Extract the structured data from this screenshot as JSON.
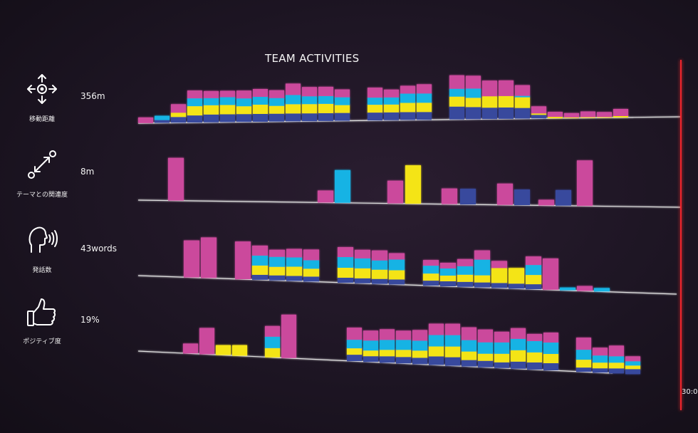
{
  "title": "TEAM ACTIVITIES",
  "colors": {
    "magenta": "#cb4a9c",
    "cyan": "#13b3e4",
    "yellow": "#f4e418",
    "navy": "#37489d",
    "timer": "#f0242c",
    "baseline": "#e0e0e0"
  },
  "metrics": [
    {
      "icon": "move-arrows-icon",
      "label": "移動距離",
      "value": "356m"
    },
    {
      "icon": "theme-relevance-icon",
      "label": "テーマとの関連度",
      "value": "8m"
    },
    {
      "icon": "speaking-head-icon",
      "label": "発話数",
      "value": "43words"
    },
    {
      "icon": "thumbs-up-icon",
      "label": "ポジティブ度",
      "value": "19%"
    }
  ],
  "timer": {
    "label": "30:0"
  },
  "chart_data": [
    {
      "type": "bar",
      "name": "移動距離",
      "series": [
        {
          "color": "navy",
          "values": [
            0,
            4,
            8,
            10,
            11,
            11,
            11,
            11,
            11,
            11,
            11,
            11,
            11,
            0,
            11,
            11,
            11,
            11,
            0,
            18,
            17,
            16,
            16,
            15,
            5,
            0,
            0,
            0,
            0,
            0
          ]
        },
        {
          "color": "yellow",
          "values": [
            0,
            0,
            6,
            13,
            13,
            13,
            11,
            13,
            11,
            13,
            13,
            13,
            11,
            0,
            11,
            11,
            13,
            13,
            0,
            14,
            13,
            16,
            16,
            15,
            2,
            2,
            1,
            1,
            1,
            2
          ]
        },
        {
          "color": "cyan",
          "values": [
            0,
            6,
            0,
            11,
            10,
            11,
            11,
            11,
            11,
            13,
            11,
            11,
            11,
            0,
            10,
            10,
            13,
            13,
            0,
            11,
            13,
            0,
            0,
            2,
            0,
            0,
            0,
            0,
            0,
            0
          ]
        },
        {
          "color": "magenta",
          "values": [
            8,
            0,
            12,
            11,
            10,
            9,
            11,
            11,
            11,
            16,
            13,
            13,
            11,
            0,
            14,
            11,
            11,
            13,
            0,
            19,
            18,
            22,
            22,
            15,
            10,
            7,
            6,
            8,
            7,
            10
          ]
        }
      ]
    },
    {
      "type": "bar",
      "name": "テーマとの関連度",
      "bars": [
        {
          "color": "magenta",
          "value": 60
        },
        {
          "color": "magenta",
          "value": 17
        },
        {
          "color": "cyan",
          "value": 46
        },
        {
          "color": "magenta",
          "value": 32
        },
        {
          "color": "yellow",
          "value": 54
        },
        {
          "color": "magenta",
          "value": 22
        },
        {
          "color": "navy",
          "value": 22
        },
        {
          "color": "magenta",
          "value": 30
        },
        {
          "color": "navy",
          "value": 22
        },
        {
          "color": "magenta",
          "value": 8
        },
        {
          "color": "navy",
          "value": 22
        },
        {
          "color": "magenta",
          "value": 64
        }
      ]
    },
    {
      "type": "bar",
      "name": "発話数",
      "series": [
        {
          "color": "navy",
          "values": [
            0,
            0,
            0,
            0,
            0,
            7,
            7,
            7,
            7,
            0,
            7,
            7,
            7,
            7,
            0,
            7,
            7,
            7,
            7,
            7,
            7,
            7,
            0,
            0,
            0,
            0,
            0,
            0,
            0
          ]
        },
        {
          "color": "yellow",
          "values": [
            0,
            0,
            0,
            0,
            0,
            13,
            12,
            13,
            11,
            0,
            14,
            14,
            13,
            13,
            0,
            10,
            8,
            10,
            10,
            21,
            22,
            13,
            0,
            0,
            0,
            0,
            0,
            0,
            0
          ]
        },
        {
          "color": "cyan",
          "values": [
            0,
            0,
            0,
            0,
            0,
            14,
            14,
            13,
            12,
            0,
            15,
            14,
            13,
            15,
            0,
            11,
            10,
            12,
            22,
            0,
            0,
            14,
            0,
            4,
            0,
            5,
            0,
            0,
            0
          ]
        },
        {
          "color": "magenta",
          "values": [
            0,
            52,
            57,
            0,
            53,
            14,
            10,
            12,
            15,
            0,
            14,
            12,
            14,
            9,
            0,
            8,
            8,
            10,
            13,
            10,
            0,
            12,
            44,
            0,
            7,
            0,
            0,
            0,
            0
          ]
        }
      ]
    },
    {
      "type": "bar",
      "name": "ポジティブ度",
      "series": [
        {
          "color": "navy",
          "values": [
            0,
            0,
            0,
            0,
            0,
            0,
            0,
            0,
            0,
            0,
            0,
            9,
            8,
            9,
            9,
            9,
            12,
            12,
            9,
            9,
            8,
            10,
            10,
            10,
            0,
            6,
            6,
            7,
            7,
            0,
            0,
            0,
            0
          ]
        },
        {
          "color": "yellow",
          "values": [
            0,
            0,
            0,
            14,
            15,
            0,
            13,
            0,
            0,
            0,
            0,
            9,
            8,
            9,
            10,
            10,
            14,
            15,
            12,
            10,
            12,
            16,
            14,
            13,
            0,
            11,
            8,
            8,
            5,
            0,
            0,
            0,
            0
          ]
        },
        {
          "color": "cyan",
          "values": [
            0,
            0,
            0,
            0,
            0,
            0,
            16,
            0,
            0,
            0,
            0,
            12,
            14,
            14,
            14,
            14,
            16,
            16,
            16,
            16,
            16,
            16,
            16,
            16,
            0,
            14,
            10,
            9,
            6,
            0,
            0,
            0,
            0
          ]
        },
        {
          "color": "magenta",
          "values": [
            0,
            14,
            37,
            0,
            0,
            0,
            15,
            61,
            0,
            0,
            0,
            17,
            14,
            15,
            13,
            15,
            16,
            16,
            18,
            18,
            15,
            15,
            10,
            14,
            0,
            17,
            11,
            15,
            7,
            0,
            0,
            0,
            0
          ]
        }
      ]
    }
  ]
}
